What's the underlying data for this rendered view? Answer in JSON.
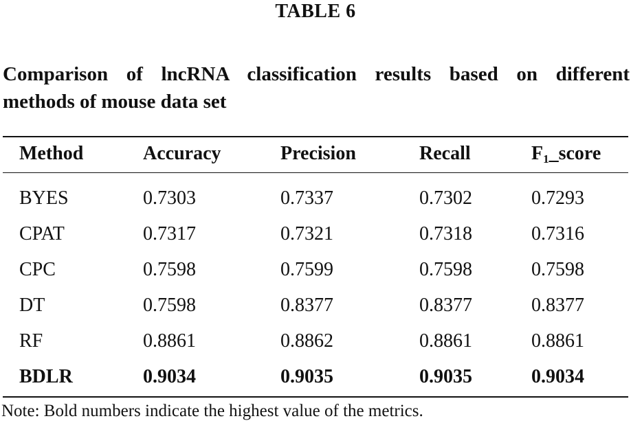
{
  "table_label": "TABLE 6",
  "caption_line1": "Comparison of lncRNA classification results based on different",
  "caption_line2": "methods of mouse data set",
  "headers": {
    "method": "Method",
    "accuracy": "Accuracy",
    "precision": "Precision",
    "recall": "Recall",
    "f1_prefix": "F",
    "f1_sub": "1",
    "f1_suffix": "_score"
  },
  "rows": [
    {
      "method": "BYES",
      "accuracy": "0.7303",
      "precision": "0.7337",
      "recall": "0.7302",
      "f1": "0.7293",
      "bold": false
    },
    {
      "method": "CPAT",
      "accuracy": "0.7317",
      "precision": "0.7321",
      "recall": "0.7318",
      "f1": "0.7316",
      "bold": false
    },
    {
      "method": "CPC",
      "accuracy": "0.7598",
      "precision": "0.7599",
      "recall": "0.7598",
      "f1": "0.7598",
      "bold": false
    },
    {
      "method": "DT",
      "accuracy": "0.7598",
      "precision": "0.8377",
      "recall": "0.8377",
      "f1": "0.8377",
      "bold": false
    },
    {
      "method": "RF",
      "accuracy": "0.8861",
      "precision": "0.8862",
      "recall": "0.8861",
      "f1": "0.8861",
      "bold": false
    },
    {
      "method": "BDLR",
      "accuracy": "0.9034",
      "precision": "0.9035",
      "recall": "0.9035",
      "f1": "0.9034",
      "bold": true
    }
  ],
  "note": "Note: Bold numbers indicate the highest value of the metrics."
}
